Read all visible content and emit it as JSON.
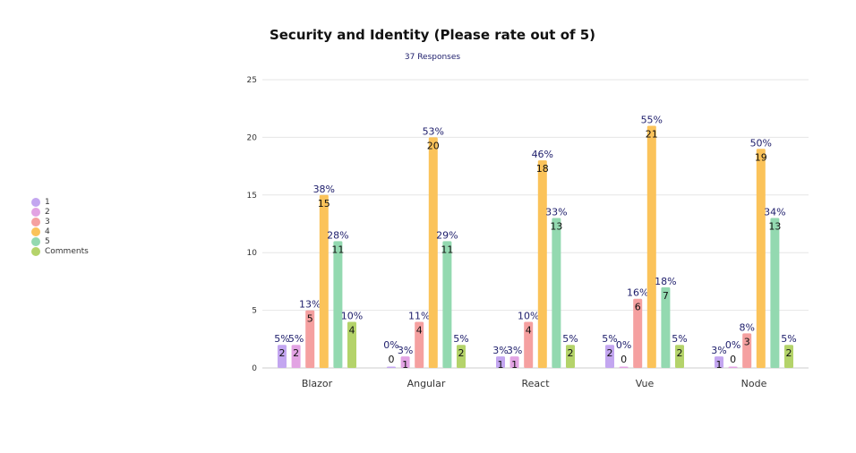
{
  "chart_data": {
    "type": "bar",
    "title": "Security and Identity (Please rate out of 5)",
    "subtitle": "37 Responses",
    "categories": [
      "Blazor",
      "Angular",
      "React",
      "Vue",
      "Node"
    ],
    "ylim": [
      0,
      25
    ],
    "yticks": [
      0,
      5,
      10,
      15,
      20,
      25
    ],
    "grid": true,
    "legend_position": "left",
    "series": [
      {
        "name": "1",
        "color": "#c3a6f0",
        "values": [
          2,
          0,
          1,
          2,
          1
        ],
        "percent_labels": [
          "5%",
          "0%",
          "3%",
          "5%",
          "3%"
        ]
      },
      {
        "name": "2",
        "color": "#e2a3e3",
        "values": [
          2,
          1,
          1,
          0,
          0
        ],
        "percent_labels": [
          "5%",
          "3%",
          "3%",
          "0%",
          "0%"
        ]
      },
      {
        "name": "3",
        "color": "#f5a0a0",
        "values": [
          5,
          4,
          4,
          6,
          3
        ],
        "percent_labels": [
          "13%",
          "11%",
          "10%",
          "16%",
          "8%"
        ]
      },
      {
        "name": "4",
        "color": "#fbc35a",
        "values": [
          15,
          20,
          18,
          21,
          19
        ],
        "percent_labels": [
          "38%",
          "53%",
          "46%",
          "55%",
          "50%"
        ]
      },
      {
        "name": "5",
        "color": "#93d9b0",
        "values": [
          11,
          11,
          13,
          7,
          13
        ],
        "percent_labels": [
          "28%",
          "29%",
          "33%",
          "18%",
          "34%"
        ]
      },
      {
        "name": "Comments",
        "color": "#b4d36a",
        "values": [
          4,
          2,
          2,
          2,
          2
        ],
        "percent_labels": [
          "10%",
          "5%",
          "5%",
          "5%",
          "5%"
        ]
      }
    ]
  }
}
